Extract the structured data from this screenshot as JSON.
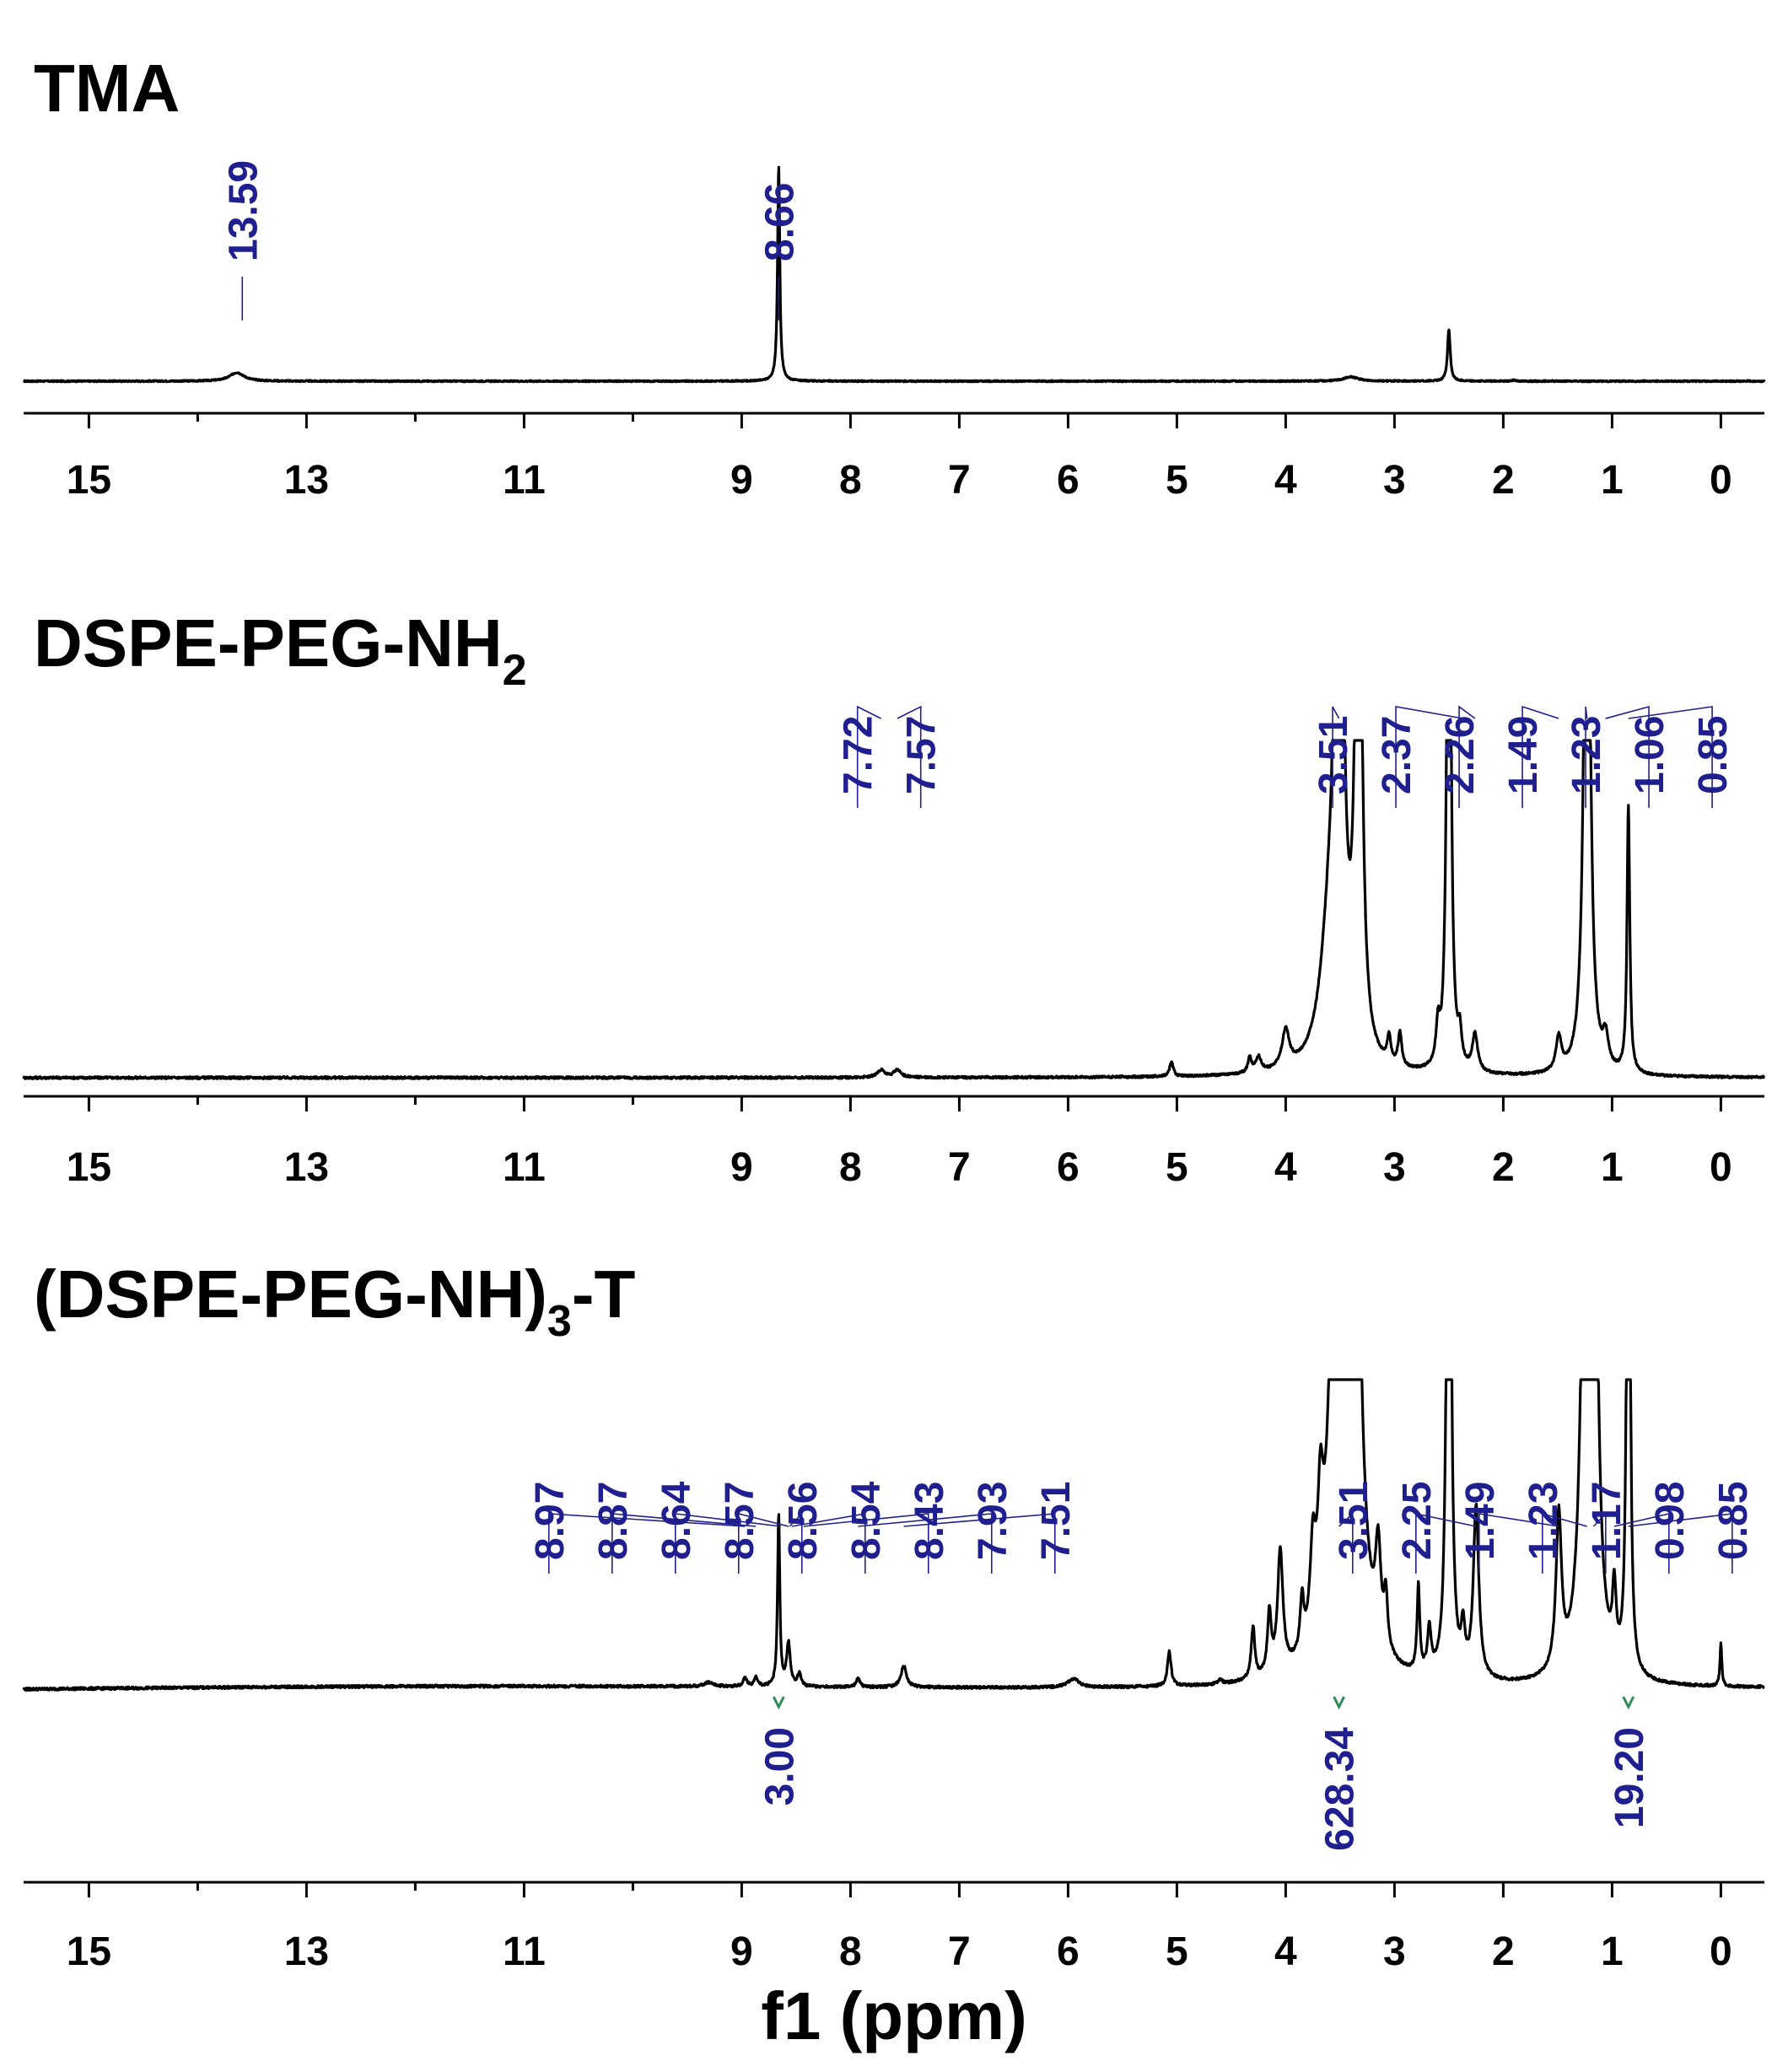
{
  "chart_data": [
    {
      "type": "line",
      "title": "TMA",
      "xlabel": "",
      "ylabel": "",
      "xlim": [
        15.6,
        -0.4
      ],
      "xticks": [
        15,
        13,
        11,
        9,
        8,
        7,
        6,
        5,
        4,
        3,
        2,
        1,
        0
      ],
      "peaks": [
        {
          "x": 13.64,
          "h": 0.04,
          "w": 0.08
        },
        {
          "x": 8.66,
          "h": 1.0,
          "w": 0.012
        },
        {
          "x": 3.4,
          "h": 0.02,
          "w": 0.08
        },
        {
          "x": 2.5,
          "h": 0.24,
          "w": 0.015
        },
        {
          "x": 1.9,
          "h": 0.005,
          "w": 0.02
        }
      ],
      "peak_labels": [
        "13.59",
        "8.66"
      ],
      "peak_label_positions": [
        13.59,
        8.66
      ],
      "integrals": []
    },
    {
      "type": "line",
      "title": "DSPE-PEG-NH",
      "title_sub": "2",
      "xlabel": "",
      "ylabel": "",
      "xlim": [
        15.6,
        -0.4
      ],
      "xticks": [
        15,
        13,
        11,
        9,
        8,
        7,
        6,
        5,
        4,
        3,
        2,
        1,
        0
      ],
      "peaks": [
        {
          "x": 3.51,
          "h": 2.0,
          "w": 0.04
        },
        {
          "x": 3.6,
          "h": 0.3,
          "w": 0.1
        },
        {
          "x": 3.33,
          "h": 2.0,
          "w": 0.03
        },
        {
          "x": 2.5,
          "h": 2.0,
          "w": 0.02
        },
        {
          "x": 1.23,
          "h": 2.0,
          "w": 0.03
        },
        {
          "x": 0.85,
          "h": 0.72,
          "w": 0.015
        },
        {
          "x": 2.26,
          "h": 0.1,
          "w": 0.03
        },
        {
          "x": 2.4,
          "h": 0.08,
          "w": 0.02
        },
        {
          "x": 2.6,
          "h": 0.1,
          "w": 0.02
        },
        {
          "x": 1.49,
          "h": 0.09,
          "w": 0.03
        },
        {
          "x": 1.06,
          "h": 0.08,
          "w": 0.03
        },
        {
          "x": 4.0,
          "h": 0.1,
          "w": 0.04
        },
        {
          "x": 4.25,
          "h": 0.04,
          "w": 0.03
        },
        {
          "x": 4.33,
          "h": 0.04,
          "w": 0.02
        },
        {
          "x": 5.05,
          "h": 0.04,
          "w": 0.02
        },
        {
          "x": 3.05,
          "h": 0.07,
          "w": 0.02
        },
        {
          "x": 2.95,
          "h": 0.09,
          "w": 0.02
        },
        {
          "x": 7.72,
          "h": 0.02,
          "w": 0.04
        },
        {
          "x": 7.57,
          "h": 0.02,
          "w": 0.04
        }
      ],
      "peak_labels": [
        "7.72",
        "7.57",
        "3.51",
        "2.37",
        "2.26",
        "1.49",
        "1.23",
        "1.06",
        "0.85"
      ],
      "peak_label_positions": [
        7.72,
        7.57,
        3.51,
        2.37,
        2.26,
        1.49,
        1.23,
        1.06,
        0.85
      ],
      "integrals": []
    },
    {
      "type": "line",
      "title": "(DSPE-PEG-NH)",
      "title_sub": "3",
      "title_suffix": "-T",
      "xlabel": "f1 (ppm)",
      "ylabel": "",
      "xlim": [
        15.6,
        -0.4
      ],
      "xticks": [
        15,
        13,
        11,
        9,
        8,
        7,
        6,
        5,
        4,
        3,
        2,
        1,
        0
      ],
      "peaks": [
        {
          "x": 8.66,
          "h": 0.4,
          "w": 0.012
        },
        {
          "x": 8.57,
          "h": 0.1,
          "w": 0.02
        },
        {
          "x": 8.47,
          "h": 0.03,
          "w": 0.02
        },
        {
          "x": 8.97,
          "h": 0.02,
          "w": 0.02
        },
        {
          "x": 8.87,
          "h": 0.02,
          "w": 0.02
        },
        {
          "x": 9.3,
          "h": 0.01,
          "w": 0.05
        },
        {
          "x": 7.93,
          "h": 0.02,
          "w": 0.02
        },
        {
          "x": 7.51,
          "h": 0.05,
          "w": 0.03
        },
        {
          "x": 5.95,
          "h": 0.02,
          "w": 0.06
        },
        {
          "x": 5.07,
          "h": 0.08,
          "w": 0.02
        },
        {
          "x": 4.6,
          "h": 0.01,
          "w": 0.02
        },
        {
          "x": 4.3,
          "h": 0.12,
          "w": 0.02
        },
        {
          "x": 4.05,
          "h": 0.28,
          "w": 0.03
        },
        {
          "x": 4.15,
          "h": 0.14,
          "w": 0.02
        },
        {
          "x": 3.85,
          "h": 0.12,
          "w": 0.02
        },
        {
          "x": 3.75,
          "h": 0.2,
          "w": 0.03
        },
        {
          "x": 3.68,
          "h": 0.25,
          "w": 0.03
        },
        {
          "x": 3.51,
          "h": 2.0,
          "w": 0.06
        },
        {
          "x": 3.38,
          "h": 2.0,
          "w": 0.05
        },
        {
          "x": 3.15,
          "h": 0.22,
          "w": 0.03
        },
        {
          "x": 3.08,
          "h": 0.12,
          "w": 0.02
        },
        {
          "x": 2.78,
          "h": 0.2,
          "w": 0.015
        },
        {
          "x": 2.68,
          "h": 0.1,
          "w": 0.02
        },
        {
          "x": 2.5,
          "h": 2.0,
          "w": 0.02
        },
        {
          "x": 2.37,
          "h": 0.1,
          "w": 0.02
        },
        {
          "x": 2.25,
          "h": 0.4,
          "w": 0.03
        },
        {
          "x": 1.49,
          "h": 0.36,
          "w": 0.03
        },
        {
          "x": 1.23,
          "h": 2.0,
          "w": 0.04
        },
        {
          "x": 1.17,
          "h": 1.5,
          "w": 0.03
        },
        {
          "x": 0.98,
          "h": 0.16,
          "w": 0.02
        },
        {
          "x": 0.85,
          "h": 2.0,
          "w": 0.015
        },
        {
          "x": 0.0,
          "h": 0.1,
          "w": 0.01
        }
      ],
      "baseline_hump": true,
      "peak_labels": [
        "8.97",
        "8.87",
        "8.64",
        "8.57",
        "8.56",
        "8.54",
        "8.43",
        "7.93",
        "7.51",
        "3.51",
        "2.25",
        "1.49",
        "1.23",
        "1.17",
        "0.98",
        "0.85"
      ],
      "peak_label_positions": [
        8.97,
        8.87,
        8.64,
        8.57,
        8.56,
        8.54,
        8.43,
        7.93,
        7.51,
        3.51,
        2.25,
        1.49,
        1.23,
        1.17,
        0.98,
        0.85
      ],
      "integrals": [
        {
          "x": 8.66,
          "label": "3.00"
        },
        {
          "x": 3.51,
          "label": "628.34"
        },
        {
          "x": 0.85,
          "label": "19.20"
        }
      ]
    }
  ],
  "colors": {
    "spectrum": "#000000",
    "peak_label": "#1f1f8f",
    "integral_marker": "#2e8b57"
  }
}
